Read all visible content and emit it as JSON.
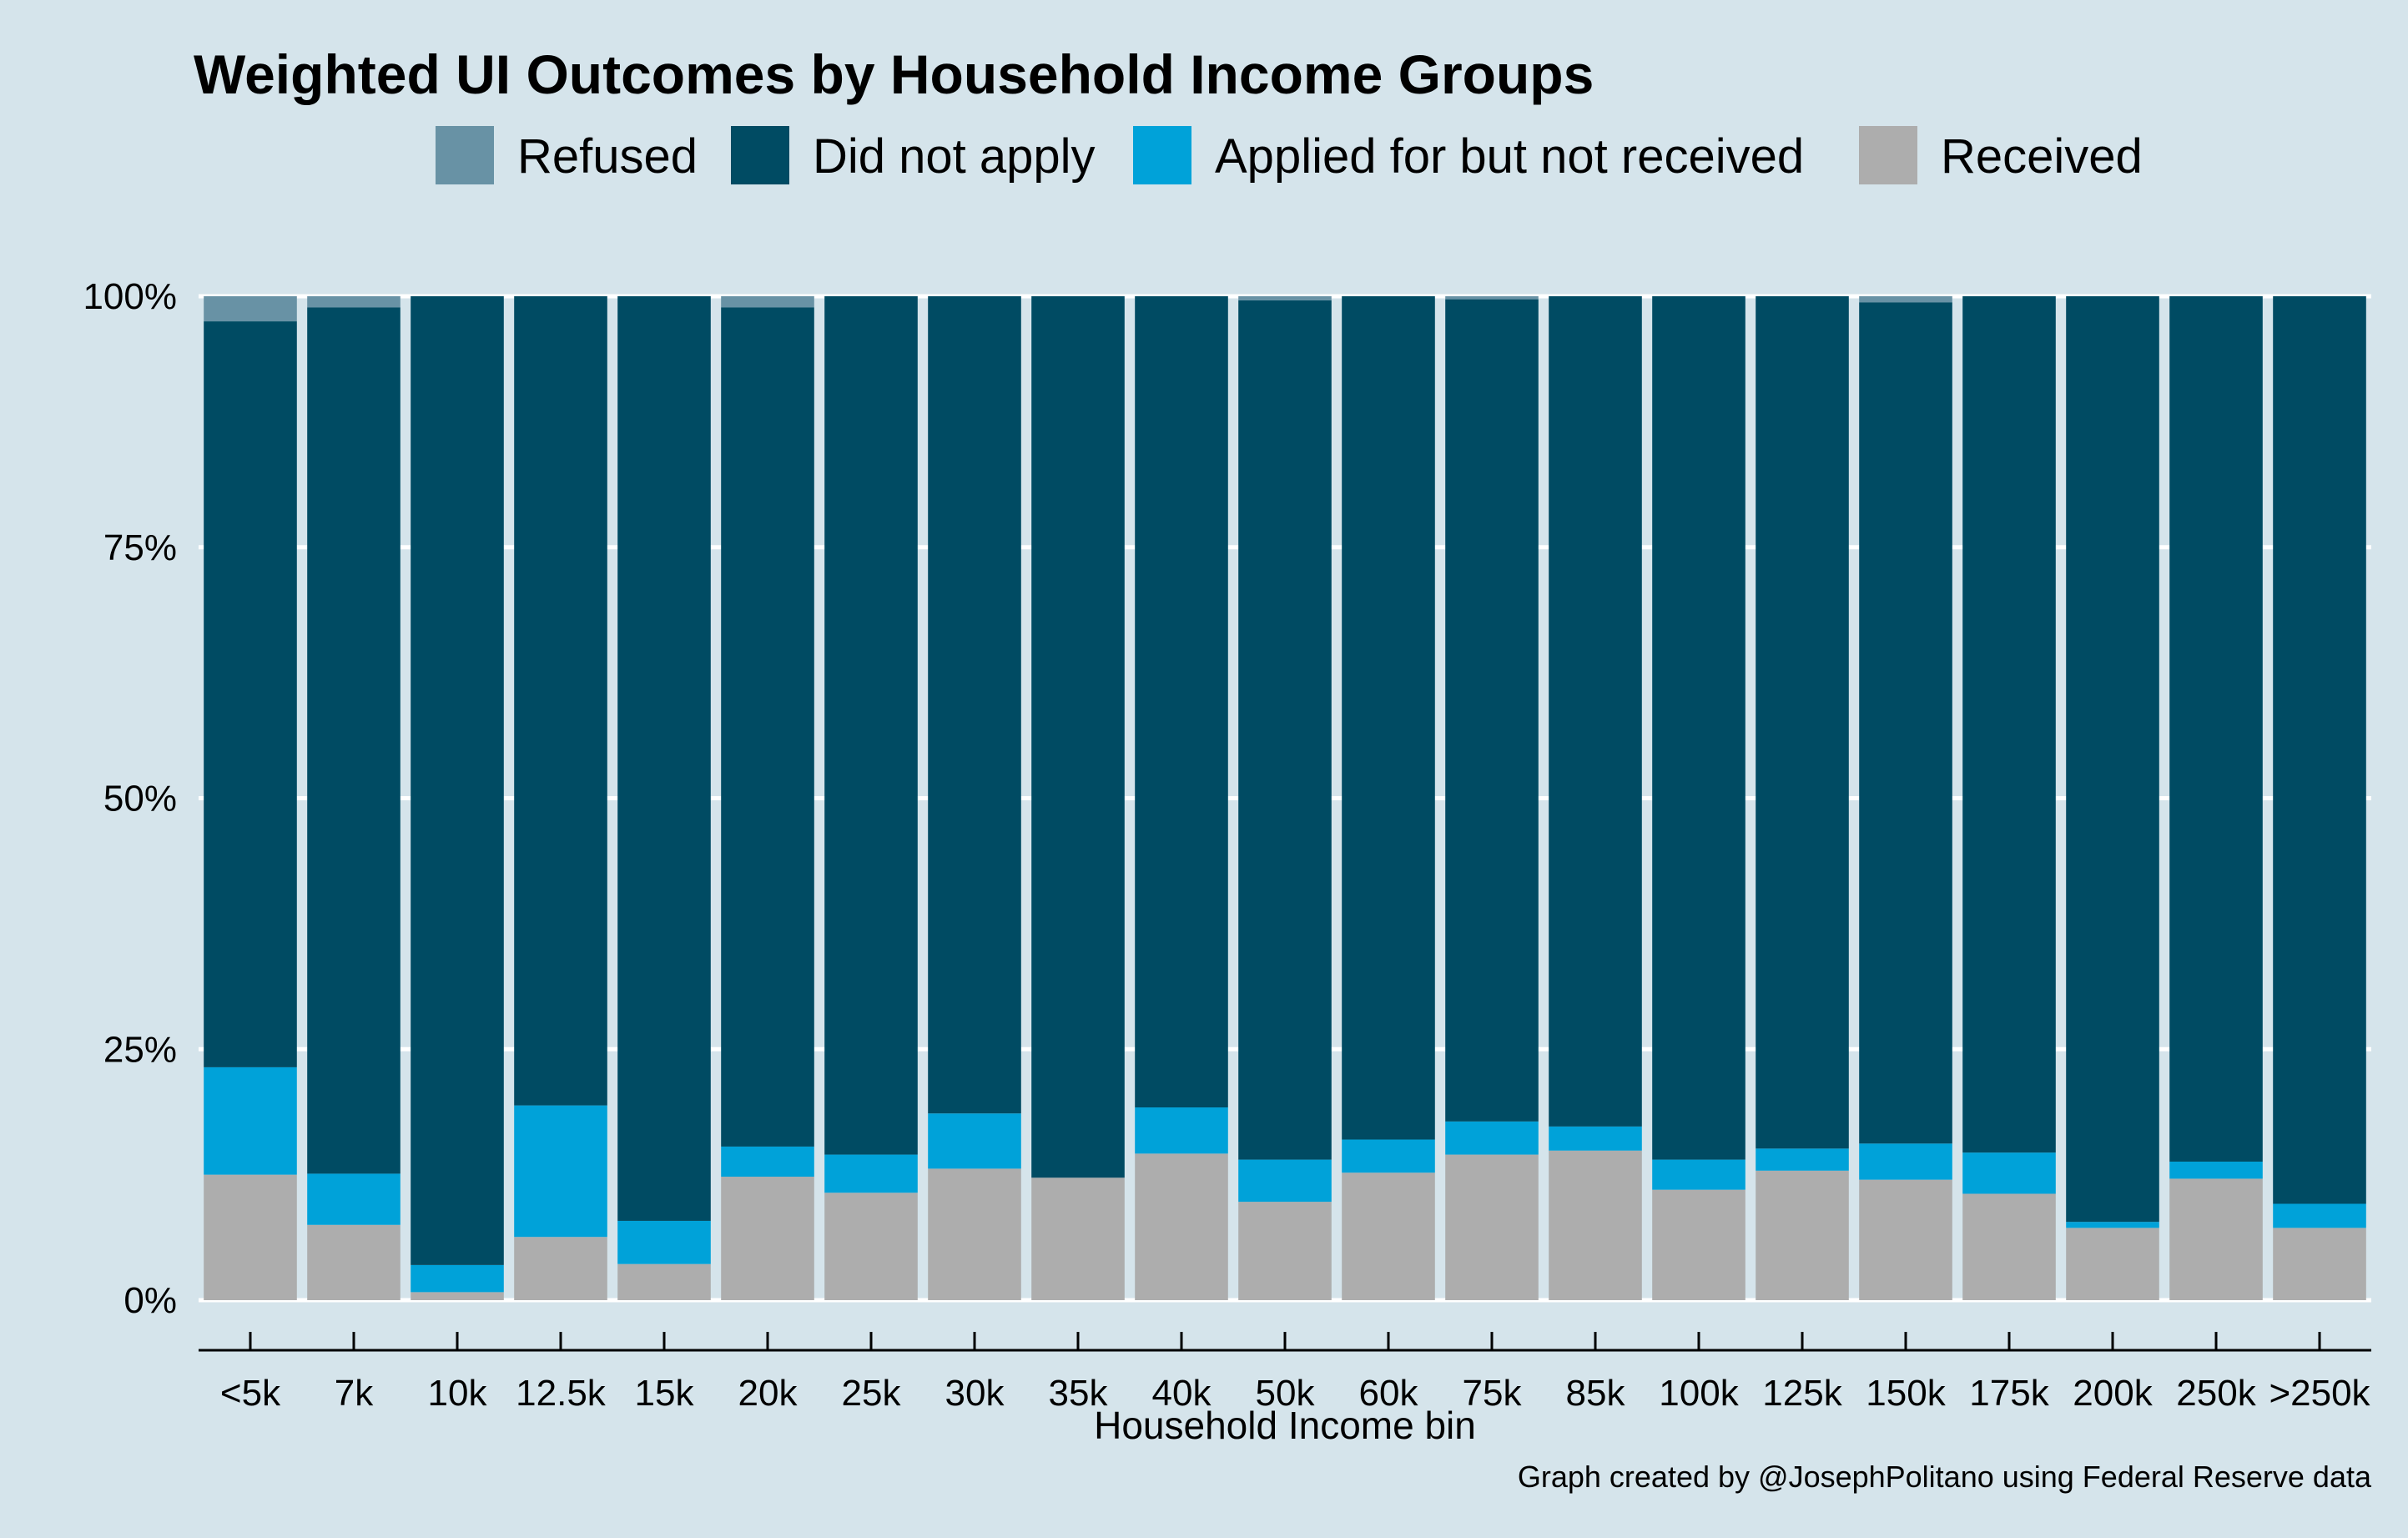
{
  "chart_data": {
    "type": "bar",
    "stacked": true,
    "title": "Weighted UI Outcomes by Household Income Groups",
    "xlabel": "Household Income bin",
    "ylabel": "",
    "ylim": [
      0,
      1
    ],
    "y_ticks": [
      "0%",
      "25%",
      "50%",
      "75%",
      "100%"
    ],
    "y_tick_values": [
      0,
      0.25,
      0.5,
      0.75,
      1.0
    ],
    "grid": true,
    "legend_position": "top",
    "caption": "Graph created by @JosephPolitano using Federal Reserve data",
    "categories": [
      "<5k",
      "7k",
      "10k",
      "12.5k",
      "15k",
      "20k",
      "25k",
      "30k",
      "35k",
      "40k",
      "50k",
      "60k",
      "75k",
      "85k",
      "100k",
      "125k",
      "150k",
      "175k",
      "200k",
      "250k",
      ">250k"
    ],
    "series": [
      {
        "name": "Received",
        "color": "#adadad",
        "values": [
          0.125,
          0.075,
          0.008,
          0.063,
          0.036,
          0.123,
          0.107,
          0.131,
          0.122,
          0.146,
          0.098,
          0.127,
          0.145,
          0.149,
          0.11,
          0.129,
          0.12,
          0.106,
          0.072,
          0.121,
          0.072
        ]
      },
      {
        "name": "Applied for but not received",
        "color": "#00a2d9",
        "values": [
          0.107,
          0.051,
          0.027,
          0.131,
          0.043,
          0.03,
          0.038,
          0.055,
          0.0,
          0.046,
          0.042,
          0.033,
          0.033,
          0.024,
          0.03,
          0.022,
          0.036,
          0.041,
          0.006,
          0.017,
          0.024
        ]
      },
      {
        "name": "Did not apply",
        "color": "#004b63",
        "values": [
          0.743,
          0.863,
          0.965,
          0.806,
          0.921,
          0.836,
          0.855,
          0.814,
          0.878,
          0.808,
          0.856,
          0.84,
          0.819,
          0.827,
          0.86,
          0.849,
          0.838,
          0.853,
          0.922,
          0.862,
          0.904
        ]
      },
      {
        "name": "Refused",
        "color": "#6892a5",
        "values": [
          0.025,
          0.011,
          0.0,
          0.0,
          0.0,
          0.011,
          0.0,
          0.0,
          0.0,
          0.0,
          0.004,
          0.0,
          0.003,
          0.0,
          0.0,
          0.0,
          0.006,
          0.0,
          0.0,
          0.0,
          0.0
        ]
      }
    ],
    "legend_order": [
      "Refused",
      "Did not apply",
      "Applied for but not received",
      "Received"
    ]
  }
}
